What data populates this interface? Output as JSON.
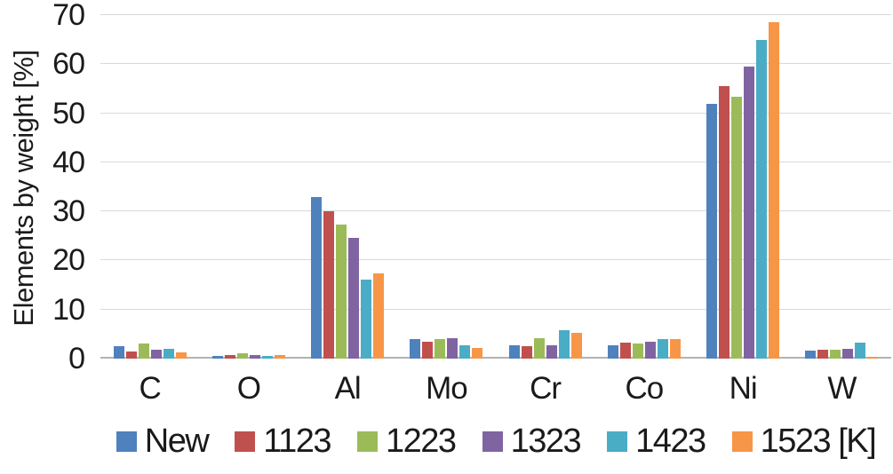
{
  "chart_data": {
    "type": "bar",
    "title": "",
    "xlabel": "",
    "ylabel": "Elements by weight [%]",
    "ylim": [
      0,
      70
    ],
    "yticks": [
      0,
      10,
      20,
      30,
      40,
      50,
      60,
      70
    ],
    "grid": "horizontal",
    "legend_position": "bottom",
    "categories": [
      "C",
      "O",
      "Al",
      "Mo",
      "Cr",
      "Co",
      "Ni",
      "W"
    ],
    "series": [
      {
        "name": "New",
        "color": "#4F81BD",
        "values": [
          2.5,
          0.5,
          33.0,
          4.0,
          2.7,
          2.8,
          52.0,
          1.6
        ]
      },
      {
        "name": "1123",
        "color": "#C0504D",
        "values": [
          1.5,
          0.7,
          30.0,
          3.4,
          2.6,
          3.2,
          55.5,
          1.8
        ]
      },
      {
        "name": "1223",
        "color": "#9BBB59",
        "values": [
          3.0,
          1.0,
          27.4,
          4.0,
          4.2,
          3.1,
          53.3,
          1.8
        ]
      },
      {
        "name": "1323",
        "color": "#8064A2",
        "values": [
          1.8,
          0.7,
          24.6,
          4.2,
          2.8,
          3.4,
          59.5,
          2.0
        ]
      },
      {
        "name": "1423",
        "color": "#4BACC6",
        "values": [
          2.0,
          0.6,
          16.1,
          2.7,
          5.8,
          4.0,
          65.0,
          3.3
        ]
      },
      {
        "name": "1523 [K]",
        "color": "#F79646",
        "values": [
          1.3,
          0.7,
          17.4,
          2.2,
          5.2,
          3.9,
          68.5,
          0.4
        ]
      }
    ],
    "colors": {
      "gridline": "#d9d9d9",
      "baseline": "#b3b3b3",
      "text": "#1a1a1a",
      "background": "#ffffff"
    }
  }
}
